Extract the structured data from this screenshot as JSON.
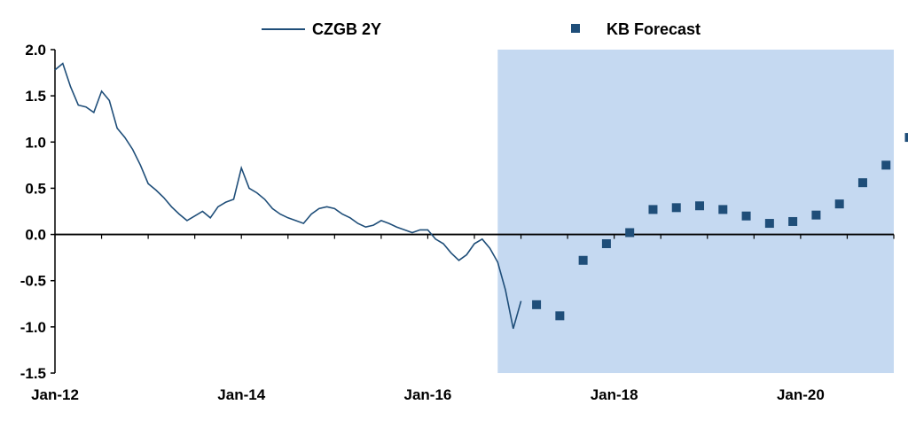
{
  "chart_data": {
    "type": "line",
    "title": "",
    "xlabel": "",
    "ylabel": "",
    "ylim": [
      -1.5,
      2.0
    ],
    "yticks": [
      "2.0",
      "1.5",
      "1.0",
      "0.5",
      "0.0",
      "-0.5",
      "-1.0",
      "-1.5"
    ],
    "xticks": [
      "Jan-12",
      "Jan-14",
      "Jan-16",
      "Jan-18",
      "Jan-20"
    ],
    "xlim": [
      "2012-01",
      "2021-01"
    ],
    "grid": false,
    "legend": "top",
    "forecast_region": {
      "start": "2016-10",
      "end": "2021-01",
      "color": "#c5d9f1"
    },
    "series": [
      {
        "name": "CZGB 2Y",
        "kind": "line",
        "color": "#1f4e79",
        "points": [
          [
            "2012-01",
            1.78
          ],
          [
            "2012-02",
            1.85
          ],
          [
            "2012-03",
            1.6
          ],
          [
            "2012-04",
            1.4
          ],
          [
            "2012-05",
            1.38
          ],
          [
            "2012-06",
            1.32
          ],
          [
            "2012-07",
            1.55
          ],
          [
            "2012-08",
            1.45
          ],
          [
            "2012-09",
            1.15
          ],
          [
            "2012-10",
            1.05
          ],
          [
            "2012-11",
            0.92
          ],
          [
            "2012-12",
            0.75
          ],
          [
            "2013-01",
            0.55
          ],
          [
            "2013-02",
            0.48
          ],
          [
            "2013-03",
            0.4
          ],
          [
            "2013-04",
            0.3
          ],
          [
            "2013-05",
            0.22
          ],
          [
            "2013-06",
            0.15
          ],
          [
            "2013-07",
            0.2
          ],
          [
            "2013-08",
            0.25
          ],
          [
            "2013-09",
            0.18
          ],
          [
            "2013-10",
            0.3
          ],
          [
            "2013-11",
            0.35
          ],
          [
            "2013-12",
            0.38
          ],
          [
            "2014-01",
            0.72
          ],
          [
            "2014-02",
            0.5
          ],
          [
            "2014-03",
            0.45
          ],
          [
            "2014-04",
            0.38
          ],
          [
            "2014-05",
            0.28
          ],
          [
            "2014-06",
            0.22
          ],
          [
            "2014-07",
            0.18
          ],
          [
            "2014-08",
            0.15
          ],
          [
            "2014-09",
            0.12
          ],
          [
            "2014-10",
            0.22
          ],
          [
            "2014-11",
            0.28
          ],
          [
            "2014-12",
            0.3
          ],
          [
            "2015-01",
            0.28
          ],
          [
            "2015-02",
            0.22
          ],
          [
            "2015-03",
            0.18
          ],
          [
            "2015-04",
            0.12
          ],
          [
            "2015-05",
            0.08
          ],
          [
            "2015-06",
            0.1
          ],
          [
            "2015-07",
            0.15
          ],
          [
            "2015-08",
            0.12
          ],
          [
            "2015-09",
            0.08
          ],
          [
            "2015-10",
            0.05
          ],
          [
            "2015-11",
            0.02
          ],
          [
            "2015-12",
            0.05
          ],
          [
            "2016-01",
            0.05
          ],
          [
            "2016-02",
            -0.05
          ],
          [
            "2016-03",
            -0.1
          ],
          [
            "2016-04",
            -0.2
          ],
          [
            "2016-05",
            -0.28
          ],
          [
            "2016-06",
            -0.22
          ],
          [
            "2016-07",
            -0.1
          ],
          [
            "2016-08",
            -0.05
          ],
          [
            "2016-09",
            -0.15
          ],
          [
            "2016-10",
            -0.3
          ],
          [
            "2016-11",
            -0.6
          ],
          [
            "2016-12",
            -1.02
          ],
          [
            "2017-01",
            -0.72
          ]
        ]
      },
      {
        "name": "KB Forecast",
        "kind": "scatter",
        "color": "#1f4e79",
        "points": [
          [
            "2017-03",
            -0.76
          ],
          [
            "2017-06",
            -0.88
          ],
          [
            "2017-09",
            -0.28
          ],
          [
            "2017-12",
            -0.1
          ],
          [
            "2018-03",
            0.02
          ],
          [
            "2018-06",
            0.27
          ],
          [
            "2018-09",
            0.29
          ],
          [
            "2018-12",
            0.31
          ],
          [
            "2019-03",
            0.27
          ],
          [
            "2019-06",
            0.2
          ],
          [
            "2019-09",
            0.12
          ],
          [
            "2019-12",
            0.14
          ],
          [
            "2020-03",
            0.21
          ],
          [
            "2020-06",
            0.33
          ],
          [
            "2020-09",
            0.56
          ],
          [
            "2020-12",
            0.75
          ],
          [
            "2021-03",
            1.05
          ]
        ]
      }
    ]
  }
}
